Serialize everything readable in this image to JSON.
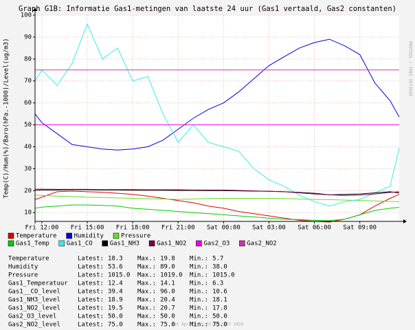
{
  "chart_data": {
    "type": "line",
    "title": "Graph G1B: Informatie Gas1-metingen van laatste 24 uur (Gas1 vertaald, Gas2 constanten)",
    "y_label": "Temp(C)/Hum(%)/Baro(hPa.-1000)/Level(ug/m3)",
    "watermark": "RRDTOOL / TOBI OETIKER",
    "footer": "Sat Apr 18 11:35:09 CEST 2020",
    "grid": true,
    "x": [
      11.55,
      12,
      13,
      14,
      15,
      16,
      17,
      18,
      19,
      20,
      21,
      22,
      23,
      24,
      25,
      26,
      27,
      28,
      29,
      30,
      31,
      32,
      33,
      34,
      35,
      35.6
    ],
    "xlim": [
      11.55,
      35.6
    ],
    "xticks": [
      {
        "value": 12,
        "label": "Fri 12:00"
      },
      {
        "value": 15,
        "label": "Fri 15:00"
      },
      {
        "value": 18,
        "label": "Fri 18:00"
      },
      {
        "value": 21,
        "label": "Fri 21:00"
      },
      {
        "value": 24,
        "label": "Sat 00:00"
      },
      {
        "value": 27,
        "label": "Sat 03:00"
      },
      {
        "value": 30,
        "label": "Sat 06:00"
      },
      {
        "value": 33,
        "label": "Sat 09:00"
      }
    ],
    "ylim": [
      6,
      100
    ],
    "yticks": [
      10,
      20,
      30,
      40,
      50,
      60,
      70,
      80,
      90,
      100
    ],
    "series": [
      {
        "name": "Temperature",
        "color": "#dd0000",
        "values": [
          16,
          17,
          19.5,
          19.8,
          19.5,
          19.3,
          18.8,
          18.3,
          17.5,
          16.5,
          15.5,
          14.5,
          13,
          12,
          10.5,
          9.5,
          8.5,
          7.5,
          6.5,
          6,
          5.7,
          7,
          9,
          13,
          16.5,
          18.3
        ]
      },
      {
        "name": "Humidity",
        "color": "#0000dd",
        "values": [
          55,
          51,
          46,
          41,
          40,
          39,
          38.5,
          39,
          40,
          43,
          48,
          53,
          57,
          60,
          65,
          71,
          77,
          81,
          85,
          87.5,
          89,
          86,
          82,
          69,
          61,
          53.6
        ]
      },
      {
        "name": "Pressure",
        "color": "#66dd22",
        "values": [
          18,
          17.8,
          17.5,
          17.3,
          17,
          16.9,
          16.7,
          16.5,
          16.3,
          16.2,
          16,
          16.2,
          16.4,
          16.5,
          16.5,
          16.5,
          16.5,
          16.4,
          16.2,
          16,
          15.9,
          15.7,
          15.5,
          15.3,
          15.1,
          15
        ]
      },
      {
        "name": "Gas1_Temp",
        "color": "#00cc00",
        "values": [
          12,
          12.5,
          13,
          13.5,
          13.5,
          13.3,
          13,
          12,
          11.5,
          11,
          10.5,
          10,
          9.5,
          9,
          8.5,
          8,
          7.5,
          7,
          6.8,
          6.5,
          6.3,
          7,
          9,
          11,
          12,
          12.4
        ]
      },
      {
        "name": "Gas1_CO",
        "color": "#33eeee",
        "values": [
          70,
          75,
          68,
          78,
          96,
          80,
          85,
          70,
          72,
          55,
          42,
          50,
          42,
          40,
          38,
          30,
          25,
          22,
          18,
          15,
          13,
          15,
          16,
          19,
          22,
          39.4
        ]
      },
      {
        "name": "Gas1_NH3",
        "color": "#000000",
        "values": [
          20.2,
          20.3,
          20.3,
          20.4,
          20.4,
          20.3,
          20.3,
          20.2,
          20.2,
          20.2,
          20.1,
          20.1,
          20,
          20,
          19.9,
          19.8,
          19.7,
          19.5,
          19.2,
          18.8,
          18.1,
          18.3,
          18.5,
          19,
          19.5,
          18.9
        ]
      },
      {
        "name": "Gas1_NO2",
        "color": "#770044",
        "values": [
          20.7,
          20.7,
          20.6,
          20.6,
          20.6,
          20.5,
          20.5,
          20.5,
          20.4,
          20.4,
          20.4,
          20.3,
          20.3,
          20.3,
          20.1,
          19.9,
          19.7,
          19.5,
          19,
          18.5,
          18.1,
          17.8,
          18,
          18.5,
          19.2,
          19.5
        ]
      },
      {
        "name": "Gas2_O3",
        "color": "#ee00ee",
        "values": [
          50,
          50,
          50,
          50,
          50,
          50,
          50,
          50,
          50,
          50,
          50,
          50,
          50,
          50,
          50,
          50,
          50,
          50,
          50,
          50,
          50,
          50,
          50,
          50,
          50,
          50
        ]
      },
      {
        "name": "Gas2_NO2",
        "color": "#cc33aa",
        "values": [
          75,
          75,
          75,
          75,
          75,
          75,
          75,
          75,
          75,
          75,
          75,
          75,
          75,
          75,
          75,
          75,
          75,
          75,
          75,
          75,
          75,
          75,
          75,
          75,
          75,
          75
        ]
      }
    ],
    "stat_labels": [
      "Latest:",
      "Max.:",
      "Min.:"
    ],
    "stats": [
      {
        "name": "Temperature",
        "latest": "18.3",
        "max": "19.8",
        "min": "5.7"
      },
      {
        "name": "Humidity",
        "latest": "53.6",
        "max": "89.0",
        "min": "38.0"
      },
      {
        "name": "Pressure",
        "latest": "1015.0",
        "max": "1019.0",
        "min": "1015.0"
      },
      {
        "name": "Gas1_Temperatuur",
        "latest": "12.4",
        "max": "14.1",
        "min": "6.3"
      },
      {
        "name": "Gas1__CO_level",
        "latest": "39.4",
        "max": "96.0",
        "min": "10.6"
      },
      {
        "name": "Gas1_NH3_level",
        "latest": "18.9",
        "max": "20.4",
        "min": "18.1"
      },
      {
        "name": "Gas1_NO2_level",
        "latest": "19.5",
        "max": "20.7",
        "min": "17.8"
      },
      {
        "name": "Gas2_O3_level",
        "latest": "50.0",
        "max": "50.0",
        "min": "50.0"
      },
      {
        "name": "Gas2_NO2_level",
        "latest": "75.0",
        "max": "75.0",
        "min": "75.0"
      }
    ]
  }
}
